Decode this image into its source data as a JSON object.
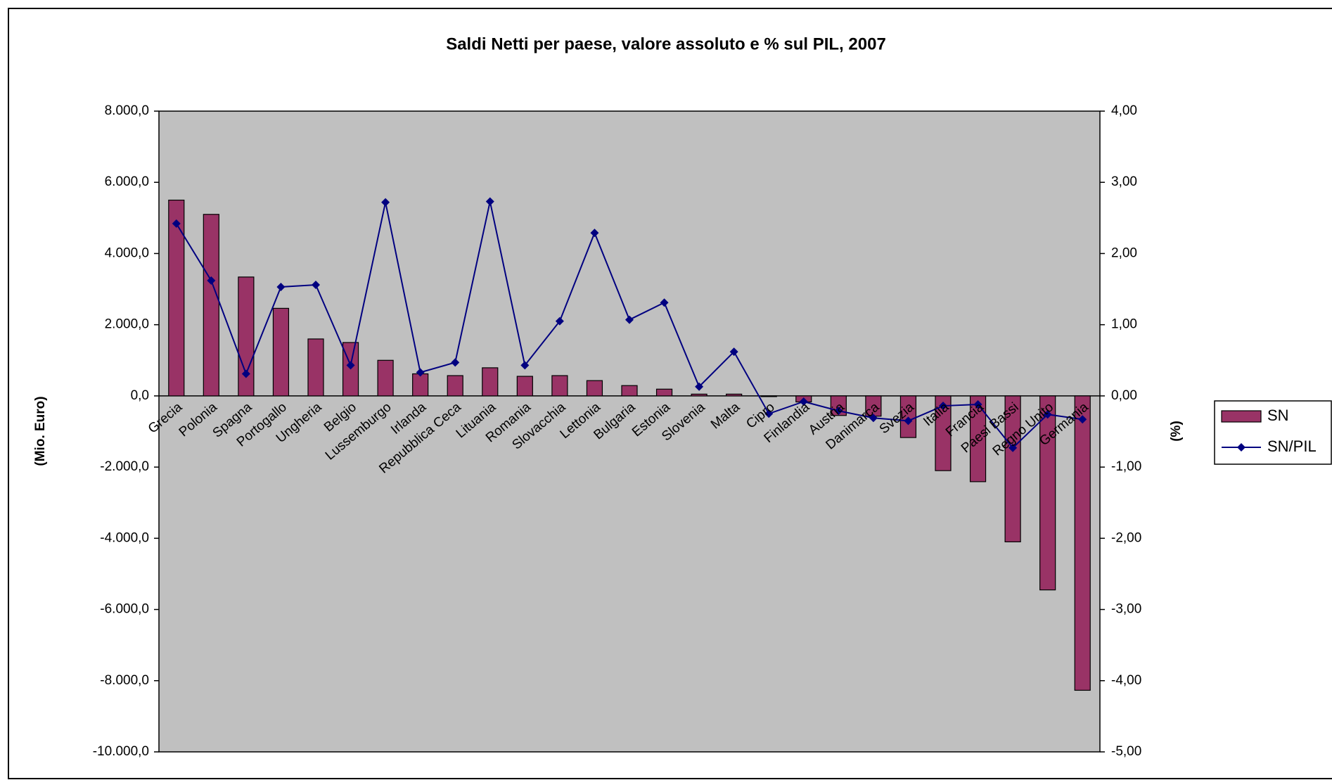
{
  "chart_data": {
    "type": "bar-line",
    "title": "Saldi Netti per paese, valore assoluto e %  sul PIL, 2007",
    "y_label": "(Mio. Euro)",
    "y2_label": "(%)",
    "categories": [
      "Grecia",
      "Polonia",
      "Spagna",
      "Portogallo",
      "Ungheria",
      "Belgio",
      "Lussemburgo",
      "Irlanda",
      "Repubblica Ceca",
      "Lituania",
      "Romania",
      "Slovacchia",
      "Lettonia",
      "Bulgaria",
      "Estonia",
      "Slovenia",
      "Malta",
      "Cipro",
      "Finlandia",
      "Austria",
      "Danimarca",
      "Svezia",
      "Italia",
      "Francia",
      "Paesi Bassi",
      "Regno Unito",
      "Germania"
    ],
    "series": [
      {
        "name": "SN",
        "type": "bar",
        "color": "#993366",
        "values": [
          5500,
          5100,
          3340,
          2460,
          1600,
          1500,
          1000,
          620,
          570,
          790,
          550,
          570,
          430,
          290,
          190,
          50,
          50,
          -20,
          -170,
          -550,
          -570,
          -1170,
          -2100,
          -2410,
          -4100,
          -5450,
          -8270
        ]
      },
      {
        "name": "SN/PIL",
        "type": "line",
        "axis": "y2",
        "color": "#000080",
        "values": [
          2.42,
          1.62,
          0.31,
          1.53,
          1.56,
          0.43,
          2.72,
          0.33,
          0.47,
          2.73,
          0.43,
          1.05,
          2.29,
          1.07,
          1.31,
          0.13,
          0.62,
          -0.25,
          -0.08,
          -0.21,
          -0.31,
          -0.35,
          -0.14,
          -0.12,
          -0.73,
          -0.26,
          -0.33
        ]
      }
    ],
    "ylim": [
      -10000,
      8000
    ],
    "yticks": [
      {
        "value": -10000,
        "label": "-10.000,0"
      },
      {
        "value": -8000,
        "label": "-8.000,0"
      },
      {
        "value": -6000,
        "label": "-6.000,0"
      },
      {
        "value": -4000,
        "label": "-4.000,0"
      },
      {
        "value": -2000,
        "label": "-2.000,0"
      },
      {
        "value": 0,
        "label": "0,0"
      },
      {
        "value": 2000,
        "label": "2.000,0"
      },
      {
        "value": 4000,
        "label": "4.000,0"
      },
      {
        "value": 6000,
        "label": "6.000,0"
      },
      {
        "value": 8000,
        "label": "8.000,0"
      }
    ],
    "y2lim": [
      -5,
      4
    ],
    "y2ticks": [
      {
        "value": -5,
        "label": "-5,00"
      },
      {
        "value": -4,
        "label": "-4,00"
      },
      {
        "value": -3,
        "label": "-3,00"
      },
      {
        "value": -2,
        "label": "-2,00"
      },
      {
        "value": -1,
        "label": "-1,00"
      },
      {
        "value": 0,
        "label": "0,00"
      },
      {
        "value": 1,
        "label": "1,00"
      },
      {
        "value": 2,
        "label": "2,00"
      },
      {
        "value": 3,
        "label": "3,00"
      },
      {
        "value": 4,
        "label": "4,00"
      }
    ],
    "legend": "right"
  }
}
